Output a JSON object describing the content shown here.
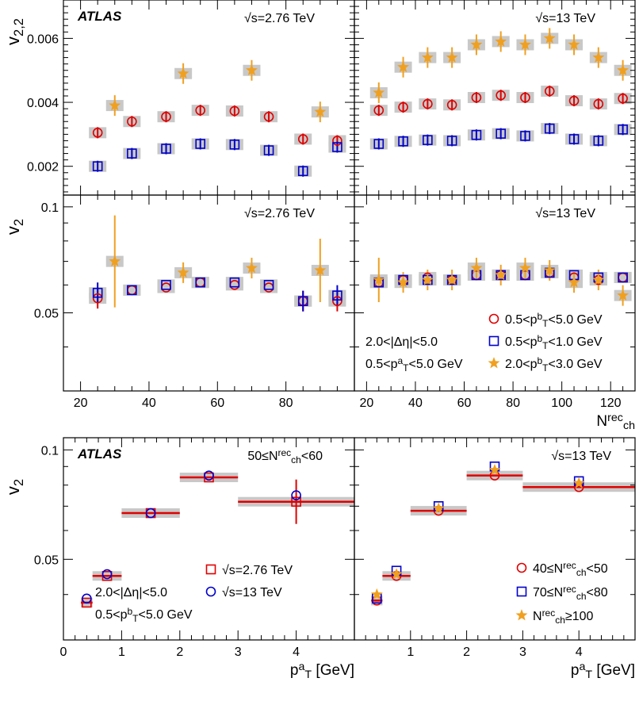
{
  "chart_data": [
    {
      "type": "scatter",
      "panel": "top-left",
      "ylabel": "v2,2",
      "xlim": [
        15,
        100
      ],
      "ylim": [
        0.0011,
        0.0072
      ],
      "yticks": [
        0.002,
        0.004,
        0.006
      ],
      "ytick_labels": [
        "0.002",
        "0.004",
        "0.006"
      ],
      "xticks": [
        20,
        40,
        60,
        80
      ],
      "annotations": {
        "atlas": "ATLAS",
        "energy": "√s=2.76 TeV"
      },
      "series": [
        {
          "name": "0.5<pT^b<5.0 GeV",
          "color": "#e00000",
          "marker": "circle",
          "points": [
            [
              25,
              0.00305
            ],
            [
              35,
              0.0034
            ],
            [
              45,
              0.00355
            ],
            [
              55,
              0.00375
            ],
            [
              65,
              0.00373
            ],
            [
              75,
              0.00355
            ],
            [
              85,
              0.00285
            ],
            [
              95,
              0.0028
            ]
          ]
        },
        {
          "name": "0.5<pT^b<1.0 GeV",
          "color": "#0000cc",
          "marker": "square",
          "points": [
            [
              25,
              0.002
            ],
            [
              35,
              0.0024
            ],
            [
              45,
              0.00255
            ],
            [
              55,
              0.0027
            ],
            [
              65,
              0.00268
            ],
            [
              75,
              0.0025
            ],
            [
              85,
              0.00185
            ],
            [
              95,
              0.0026
            ]
          ]
        },
        {
          "name": "2.0<pT^b<3.0 GeV",
          "color": "#f0a020",
          "marker": "star",
          "points": [
            [
              30,
              0.0039
            ],
            [
              50,
              0.0049
            ],
            [
              70,
              0.005
            ],
            [
              90,
              0.0037
            ]
          ]
        }
      ]
    },
    {
      "type": "scatter",
      "panel": "top-right",
      "xlim": [
        15,
        130
      ],
      "ylim": [
        0.0011,
        0.0072
      ],
      "xticks": [
        20,
        40,
        60,
        80,
        100,
        120
      ],
      "annotations": {
        "energy": "√s=13 TeV"
      },
      "series": [
        {
          "name": "0.5<pT^b<5.0 GeV",
          "color": "#e00000",
          "marker": "circle",
          "points": [
            [
              25,
              0.00375
            ],
            [
              35,
              0.00385
            ],
            [
              45,
              0.00395
            ],
            [
              55,
              0.00392
            ],
            [
              65,
              0.00415
            ],
            [
              75,
              0.00422
            ],
            [
              85,
              0.00415
            ],
            [
              95,
              0.00435
            ],
            [
              105,
              0.00405
            ],
            [
              115,
              0.00395
            ],
            [
              125,
              0.00412
            ]
          ]
        },
        {
          "name": "0.5<pT^b<1.0 GeV",
          "color": "#0000cc",
          "marker": "square",
          "points": [
            [
              25,
              0.0027
            ],
            [
              35,
              0.00278
            ],
            [
              45,
              0.00282
            ],
            [
              55,
              0.0028
            ],
            [
              65,
              0.00298
            ],
            [
              75,
              0.00302
            ],
            [
              85,
              0.00295
            ],
            [
              95,
              0.00318
            ],
            [
              105,
              0.00285
            ],
            [
              115,
              0.0028
            ],
            [
              125,
              0.00315
            ]
          ]
        },
        {
          "name": "2.0<pT^b<3.0 GeV",
          "color": "#f0a020",
          "marker": "star",
          "points": [
            [
              25,
              0.0043
            ],
            [
              35,
              0.0051
            ],
            [
              45,
              0.0054
            ],
            [
              55,
              0.0054
            ],
            [
              65,
              0.0058
            ],
            [
              75,
              0.0059
            ],
            [
              85,
              0.0058
            ],
            [
              95,
              0.006
            ],
            [
              105,
              0.0058
            ],
            [
              115,
              0.0054
            ],
            [
              125,
              0.005
            ]
          ]
        }
      ]
    },
    {
      "type": "scatter",
      "panel": "middle-left",
      "ylabel": "v2",
      "xlim": [
        15,
        100
      ],
      "ylim": [
        0.03,
        0.108
      ],
      "log_y": true,
      "yticks": [
        0.05,
        0.1
      ],
      "ytick_labels": [
        "0.05",
        "0.1"
      ],
      "xticks": [
        20,
        40,
        60,
        80
      ],
      "xtick_labels": [
        "20",
        "40",
        "60",
        "80"
      ],
      "annotations": {
        "energy": "√s=2.76 TeV"
      },
      "series": [
        {
          "name": "0.5<pT^b<5.0 GeV",
          "color": "#e00000",
          "marker": "circle",
          "points": [
            [
              25,
              0.055
            ],
            [
              35,
              0.058
            ],
            [
              45,
              0.059
            ],
            [
              55,
              0.061
            ],
            [
              65,
              0.06
            ],
            [
              75,
              0.059
            ],
            [
              85,
              0.054
            ],
            [
              95,
              0.054
            ]
          ]
        },
        {
          "name": "0.5<pT^b<1.0 GeV",
          "color": "#0000cc",
          "marker": "square",
          "points": [
            [
              25,
              0.057
            ],
            [
              35,
              0.058
            ],
            [
              45,
              0.06
            ],
            [
              55,
              0.061
            ],
            [
              65,
              0.061
            ],
            [
              75,
              0.06
            ],
            [
              85,
              0.054
            ],
            [
              95,
              0.056
            ]
          ]
        },
        {
          "name": "2.0<pT^b<3.0 GeV",
          "color": "#f0a020",
          "marker": "star",
          "points": [
            [
              30,
              0.07
            ],
            [
              50,
              0.065
            ],
            [
              70,
              0.067
            ],
            [
              90,
              0.066
            ]
          ]
        }
      ]
    },
    {
      "type": "scatter",
      "panel": "middle-right",
      "xlim": [
        15,
        130
      ],
      "ylim": [
        0.03,
        0.108
      ],
      "log_y": true,
      "xticks": [
        20,
        40,
        60,
        80,
        100,
        120
      ],
      "xtick_labels": [
        "20",
        "40",
        "60",
        "80",
        "100",
        "120"
      ],
      "xlabel": "N",
      "xlabel_sub": "ch",
      "xlabel_sup": "rec",
      "annotations": {
        "energy": "√s=13 TeV",
        "cut1": "2.0<|Δη|<5.0",
        "cut2_pre": "0.5<p",
        "cut2_sub": "T",
        "cut2_sup": "a",
        "cut2_post": "<5.0 GeV"
      },
      "legend": [
        {
          "marker": "circle",
          "color": "#e00000",
          "pre": "0.5<p",
          "sub": "T",
          "sup": "b",
          "post": "<5.0 GeV"
        },
        {
          "marker": "square",
          "color": "#0000cc",
          "pre": "0.5<p",
          "sub": "T",
          "sup": "b",
          "post": "<1.0 GeV"
        },
        {
          "marker": "star",
          "color": "#f0a020",
          "pre": "2.0<p",
          "sub": "T",
          "sup": "b",
          "post": "<3.0 GeV"
        }
      ],
      "series": [
        {
          "name": "0.5<pT^b<5.0 GeV",
          "color": "#e00000",
          "marker": "circle",
          "points": [
            [
              25,
              0.061
            ],
            [
              35,
              0.062
            ],
            [
              45,
              0.063
            ],
            [
              55,
              0.062
            ],
            [
              65,
              0.064
            ],
            [
              75,
              0.064
            ],
            [
              85,
              0.064
            ],
            [
              95,
              0.065
            ],
            [
              105,
              0.063
            ],
            [
              115,
              0.062
            ],
            [
              125,
              0.063
            ]
          ]
        },
        {
          "name": "0.5<pT^b<1.0 GeV",
          "color": "#0000cc",
          "marker": "square",
          "points": [
            [
              25,
              0.061
            ],
            [
              35,
              0.062
            ],
            [
              45,
              0.062
            ],
            [
              55,
              0.062
            ],
            [
              65,
              0.064
            ],
            [
              75,
              0.064
            ],
            [
              85,
              0.064
            ],
            [
              95,
              0.065
            ],
            [
              105,
              0.064
            ],
            [
              115,
              0.063
            ],
            [
              125,
              0.063
            ]
          ]
        },
        {
          "name": "2.0<pT^b<3.0 GeV",
          "color": "#f0a020",
          "marker": "star",
          "points": [
            [
              25,
              0.062
            ],
            [
              35,
              0.061
            ],
            [
              45,
              0.062
            ],
            [
              55,
              0.062
            ],
            [
              65,
              0.067
            ],
            [
              75,
              0.064
            ],
            [
              85,
              0.067
            ],
            [
              95,
              0.066
            ],
            [
              105,
              0.061
            ],
            [
              115,
              0.062
            ],
            [
              125,
              0.056
            ]
          ]
        }
      ]
    },
    {
      "type": "scatter",
      "panel": "bottom-left",
      "ylabel": "v2",
      "xlim": [
        0,
        5
      ],
      "ylim": [
        0.03,
        0.108
      ],
      "log_y": true,
      "yticks": [
        0.05,
        0.1
      ],
      "ytick_labels": [
        "0.05",
        "0.1"
      ],
      "xticks": [
        0,
        1,
        2,
        3,
        4
      ],
      "xtick_labels": [
        "0",
        "1",
        "2",
        "3",
        "4"
      ],
      "xlabel": "p",
      "xlabel_sub": "T",
      "xlabel_sup": "a",
      "xlabel_post": " [GeV]",
      "annotations": {
        "atlas": "ATLAS",
        "ncut_pre": "50≤N",
        "ncut_sub": "ch",
        "ncut_sup": "rec",
        "ncut_post": "<60",
        "cut1": "2.0<|Δη|<5.0",
        "cut2_pre": "0.5<p",
        "cut2_sub": "T",
        "cut2_sup": "b",
        "cut2_post": "<5.0 GeV"
      },
      "legend": [
        {
          "marker": "square",
          "color": "#e00000",
          "text": "√s=2.76 TeV"
        },
        {
          "marker": "circle",
          "color": "#0000cc",
          "text": "√s=13 TeV"
        }
      ],
      "series": [
        {
          "name": "√s=2.76 TeV",
          "color": "#e00000",
          "marker": "square",
          "points": [
            [
              0.4,
              0.038
            ],
            [
              0.75,
              0.045
            ],
            [
              1.5,
              0.067
            ],
            [
              2.5,
              0.084
            ],
            [
              4.0,
              0.072
            ]
          ],
          "bins": [
            [
              0.3,
              0.5
            ],
            [
              0.5,
              1.0
            ],
            [
              1.0,
              2.0
            ],
            [
              2.0,
              3.0
            ],
            [
              3.0,
              5.0
            ]
          ]
        },
        {
          "name": "√s=13 TeV",
          "color": "#0000cc",
          "marker": "circle",
          "points": [
            [
              0.4,
              0.039
            ],
            [
              0.75,
              0.0455
            ],
            [
              1.5,
              0.067
            ],
            [
              2.5,
              0.085
            ],
            [
              4.0,
              0.075
            ]
          ]
        }
      ]
    },
    {
      "type": "scatter",
      "panel": "bottom-right",
      "xlim": [
        0,
        5
      ],
      "ylim": [
        0.03,
        0.108
      ],
      "log_y": true,
      "xticks": [
        0,
        1,
        2,
        3,
        4
      ],
      "xtick_labels": [
        "",
        "1",
        "2",
        "3",
        "4"
      ],
      "xlabel": "p",
      "xlabel_sub": "T",
      "xlabel_sup": "a",
      "xlabel_post": " [GeV]",
      "annotations": {
        "energy": "√s=13 TeV"
      },
      "legend": [
        {
          "marker": "circle",
          "color": "#e00000",
          "pre": "40≤N",
          "sub": "ch",
          "sup": "rec",
          "post": "<50"
        },
        {
          "marker": "square",
          "color": "#0000cc",
          "pre": "70≤N",
          "sub": "ch",
          "sup": "rec",
          "post": "<80"
        },
        {
          "marker": "star",
          "color": "#f0a020",
          "pre": "N",
          "sub": "ch",
          "sup": "rec",
          "post": "≥100"
        }
      ],
      "series": [
        {
          "name": "40≤Nch^rec<50",
          "color": "#e00000",
          "marker": "circle",
          "points": [
            [
              0.4,
              0.0385
            ],
            [
              0.75,
              0.045
            ],
            [
              1.5,
              0.068
            ],
            [
              2.5,
              0.085
            ],
            [
              4.0,
              0.079
            ]
          ],
          "bins": [
            [
              0.3,
              0.5
            ],
            [
              0.5,
              1.0
            ],
            [
              1.0,
              2.0
            ],
            [
              2.0,
              3.0
            ],
            [
              3.0,
              5.0
            ]
          ]
        },
        {
          "name": "70≤Nch^rec<80",
          "color": "#0000cc",
          "marker": "square",
          "points": [
            [
              0.4,
              0.039
            ],
            [
              0.75,
              0.0465
            ],
            [
              1.5,
              0.07
            ],
            [
              2.5,
              0.09
            ],
            [
              4.0,
              0.082
            ]
          ]
        },
        {
          "name": "Nch^rec≥100",
          "color": "#f0a020",
          "marker": "star",
          "points": [
            [
              0.4,
              0.04
            ],
            [
              0.75,
              0.0455
            ],
            [
              1.5,
              0.069
            ],
            [
              2.5,
              0.088
            ],
            [
              4.0,
              0.081
            ]
          ]
        }
      ]
    }
  ]
}
